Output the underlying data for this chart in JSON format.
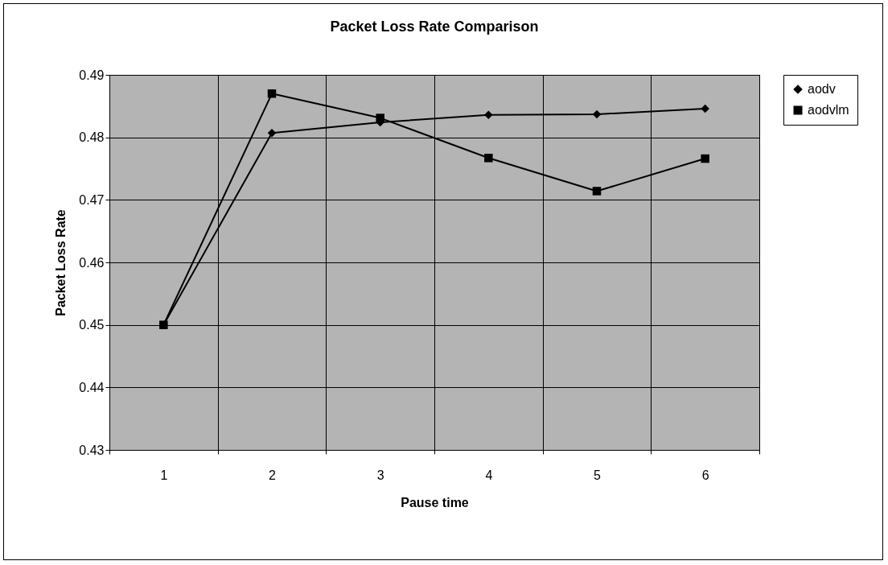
{
  "chart_data": {
    "type": "line",
    "title": "Packet Loss Rate Comparison",
    "xlabel": "Pause time",
    "ylabel": "Packet Loss Rate",
    "categories": [
      "1",
      "2",
      "3",
      "4",
      "5",
      "6"
    ],
    "series": [
      {
        "name": "aodv",
        "color": "#000000",
        "marker": "diamond",
        "values": [
          0.45,
          0.4807,
          0.4824,
          0.4836,
          0.4837,
          0.4846
        ]
      },
      {
        "name": "aodvlm",
        "color": "#000000",
        "marker": "square",
        "values": [
          0.45,
          0.487,
          0.4831,
          0.4767,
          0.4714,
          0.4766
        ]
      }
    ],
    "ylim": [
      0.43,
      0.49
    ],
    "yticks": [
      0.43,
      0.44,
      0.45,
      0.46,
      0.47,
      0.48,
      0.49
    ],
    "grid": true,
    "legend": "right",
    "line_style": "solid"
  }
}
